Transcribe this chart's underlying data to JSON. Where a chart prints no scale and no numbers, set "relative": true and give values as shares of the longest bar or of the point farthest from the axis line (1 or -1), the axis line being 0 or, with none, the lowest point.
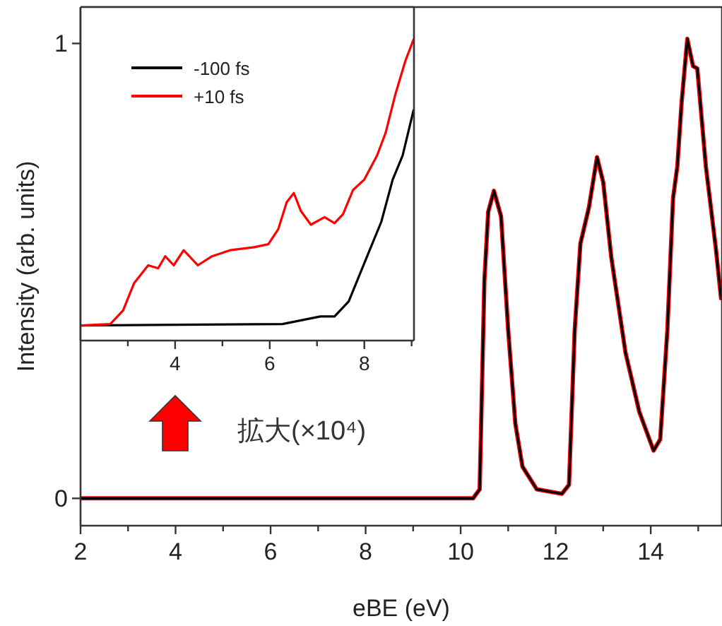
{
  "chart_data": [
    {
      "type": "line",
      "xlabel": "eBE (eV)",
      "ylabel": "Intensity (arb. units)",
      "xlim": [
        2,
        15.5
      ],
      "ylim": [
        -0.06,
        1.08
      ],
      "xticks": [
        2,
        {
          "value": 3,
          "label": null
        },
        4,
        {
          "value": 5,
          "label": null
        },
        6,
        {
          "value": 7,
          "label": null
        },
        8,
        {
          "value": 9,
          "label": null
        },
        10,
        {
          "value": 11,
          "label": null
        },
        12,
        {
          "value": 13,
          "label": null
        },
        14,
        {
          "value": 15,
          "label": null
        }
      ],
      "yticks": [
        0,
        1
      ],
      "legend": false,
      "annotations": [
        "拡大(×10⁴)"
      ],
      "series": [
        {
          "color": "#ff0000",
          "x": [
            2,
            10.26,
            10.4,
            10.5,
            10.58,
            10.7,
            10.85,
            11.0,
            11.15,
            11.3,
            11.6,
            12.13,
            12.28,
            12.4,
            12.52,
            12.7,
            12.87,
            13.0,
            13.17,
            13.47,
            13.76,
            14.06,
            14.2,
            14.35,
            14.47,
            14.56,
            14.65,
            14.77,
            14.89,
            14.98,
            15.16,
            15.37,
            15.48
          ],
          "values": [
            0,
            0,
            0.02,
            0.48,
            0.63,
            0.676,
            0.62,
            0.37,
            0.165,
            0.07,
            0.02,
            0.01,
            0.03,
            0.37,
            0.56,
            0.64,
            0.75,
            0.695,
            0.53,
            0.32,
            0.19,
            0.105,
            0.13,
            0.37,
            0.66,
            0.73,
            0.87,
            1.01,
            0.95,
            0.945,
            0.73,
            0.55,
            0.44
          ]
        },
        {
          "color": "#000000",
          "x": [
            2,
            10.26,
            10.4,
            10.5,
            10.58,
            10.7,
            10.85,
            11.0,
            11.15,
            11.3,
            11.6,
            12.13,
            12.28,
            12.4,
            12.52,
            12.7,
            12.87,
            13.0,
            13.17,
            13.47,
            13.76,
            14.06,
            14.2,
            14.35,
            14.47,
            14.56,
            14.65,
            14.77,
            14.89,
            14.98,
            15.16,
            15.37,
            15.48
          ],
          "values": [
            0,
            0,
            0.02,
            0.48,
            0.63,
            0.676,
            0.62,
            0.37,
            0.165,
            0.07,
            0.02,
            0.01,
            0.03,
            0.37,
            0.56,
            0.64,
            0.75,
            0.695,
            0.53,
            0.32,
            0.19,
            0.105,
            0.13,
            0.37,
            0.66,
            0.73,
            0.87,
            1.01,
            0.95,
            0.945,
            0.73,
            0.55,
            0.44
          ]
        }
      ]
    },
    {
      "type": "line",
      "relative": true,
      "xlim": [
        2,
        9.05
      ],
      "tick_labels": "x",
      "legend": "top left",
      "xticks": [
        {
          "value": 3,
          "label": null
        },
        4,
        {
          "value": 5,
          "label": null
        },
        6,
        {
          "value": 7,
          "label": null
        },
        8,
        {
          "value": 9,
          "label": null
        }
      ],
      "series": [
        {
          "name": "-100 fs",
          "color": "#000000",
          "x": [
            2.03,
            6.27,
            7.07,
            7.37,
            7.67,
            8.06,
            8.36,
            8.6,
            8.81,
            9.04
          ],
          "values": [
            0.05,
            0.055,
            0.08,
            0.08,
            0.13,
            0.28,
            0.395,
            0.535,
            0.615,
            0.765
          ]
        },
        {
          "name": "+10 fs",
          "color": "#ff0000",
          "x": [
            2.03,
            2.63,
            2.9,
            3.13,
            3.28,
            3.43,
            3.64,
            3.79,
            3.97,
            4.18,
            4.48,
            4.78,
            5.16,
            5.67,
            5.97,
            6.18,
            6.36,
            6.51,
            6.66,
            6.87,
            7.16,
            7.37,
            7.55,
            7.76,
            8.0,
            8.27,
            8.45,
            8.66,
            8.87,
            9.04
          ],
          "values": [
            0.05,
            0.055,
            0.1,
            0.19,
            0.22,
            0.25,
            0.24,
            0.28,
            0.25,
            0.3,
            0.25,
            0.28,
            0.3,
            0.31,
            0.32,
            0.37,
            0.46,
            0.49,
            0.43,
            0.385,
            0.41,
            0.39,
            0.42,
            0.5,
            0.535,
            0.615,
            0.69,
            0.82,
            0.93,
            1.0
          ]
        }
      ]
    }
  ]
}
